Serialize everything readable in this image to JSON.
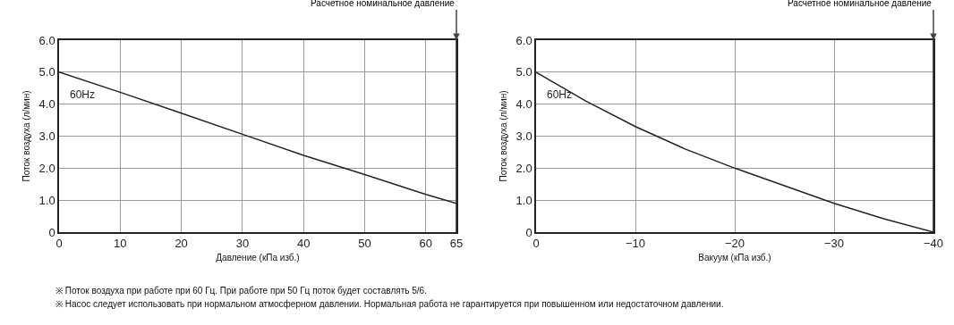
{
  "chart_data": [
    {
      "type": "line",
      "xlabel": "Давление (кПа изб.)",
      "ylabel": "Поток воздуха (л/мин)",
      "series": [
        {
          "name": "60Hz",
          "color": "#222222",
          "x": [
            0,
            10,
            20,
            30,
            40,
            50,
            60,
            65
          ],
          "values": [
            5.0,
            4.37,
            3.72,
            3.06,
            2.4,
            1.8,
            1.18,
            0.9
          ]
        }
      ],
      "xlim": [
        0,
        65
      ],
      "xticks": [
        0,
        10,
        20,
        30,
        40,
        50,
        60,
        65
      ],
      "ylim": [
        0,
        6
      ],
      "yticks": [
        0,
        {
          "value": 1,
          "label": "1.0"
        },
        {
          "value": 2,
          "label": "2.0"
        },
        {
          "value": 3,
          "label": "3.0"
        },
        {
          "value": 4,
          "label": "4.0"
        },
        {
          "value": 5,
          "label": "5.0"
        },
        {
          "value": 6,
          "label": "6.0"
        }
      ],
      "grid": true,
      "legend": false,
      "marker": "none",
      "line_style": "solid",
      "ref_lines": [
        {
          "axis": "x",
          "value": 65,
          "label": "Расчетное номинальное давление",
          "color": "#222222"
        }
      ],
      "annotations": [
        "※ Поток воздуха при работе при 60 Гц. При работе при 50 Гц поток будет составлять 5/6.",
        "※ Насос следует использовать при нормальном атмосферном давлении. Нормальная работа не гарантируется при повышенном или недостаточном давлении."
      ]
    },
    {
      "type": "line",
      "xlabel": "Вакуум (кПа изб.)",
      "ylabel": "Поток воздуха (л/мин)",
      "series": [
        {
          "name": "60Hz",
          "color": "#222222",
          "x": [
            0,
            -5,
            -10,
            -15,
            -20,
            -25,
            -30,
            -35,
            -40
          ],
          "values": [
            5.0,
            4.1,
            3.3,
            2.6,
            2.0,
            1.45,
            0.9,
            0.42,
            0.0
          ]
        }
      ],
      "xlim": [
        0,
        -40
      ],
      "xticks": [
        0,
        {
          "value": -10,
          "label": "−10"
        },
        {
          "value": -20,
          "label": "−20"
        },
        {
          "value": -30,
          "label": "−30"
        },
        {
          "value": -40,
          "label": "−40"
        }
      ],
      "ylim": [
        0,
        6
      ],
      "yticks": [
        0,
        {
          "value": 1,
          "label": "1.0"
        },
        {
          "value": 2,
          "label": "2.0"
        },
        {
          "value": 3,
          "label": "3.0"
        },
        {
          "value": 4,
          "label": "4.0"
        },
        {
          "value": 5,
          "label": "5.0"
        },
        {
          "value": 6,
          "label": "6.0"
        }
      ],
      "grid": true,
      "legend": false,
      "marker": "none",
      "line_style": "solid",
      "ref_lines": [
        {
          "axis": "x",
          "value": -40,
          "label": "Расчетное номинальное давление",
          "color": "#222222"
        }
      ]
    }
  ]
}
